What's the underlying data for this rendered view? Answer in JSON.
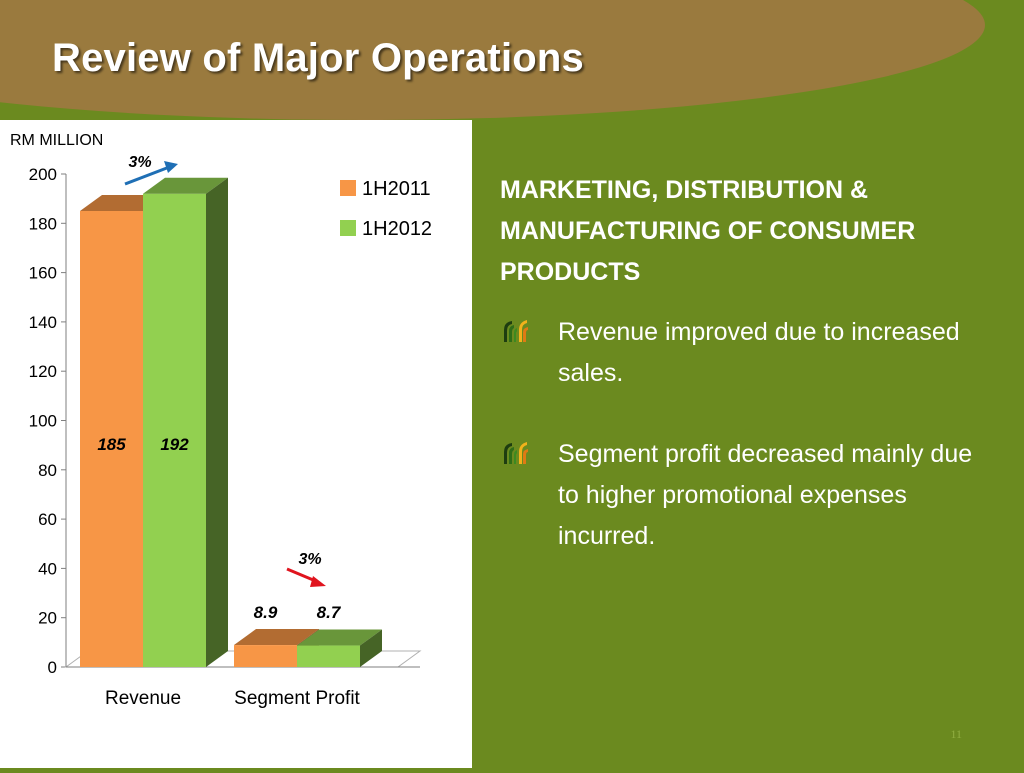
{
  "slide": {
    "title": "Review of Major Operations",
    "page_number": "11"
  },
  "content": {
    "heading": "MARKETING, DISTRIBUTION & MANUFACTURING OF CONSUMER PRODUCTS",
    "bullets": [
      {
        "icon": "leaf-logo-icon",
        "text": "Revenue improved due to increased sales."
      },
      {
        "icon": "leaf-logo-icon",
        "text": "Segment profit decreased mainly due to higher promotional expenses incurred."
      }
    ]
  },
  "chart_data": {
    "type": "bar",
    "unit_label": "RM MILLION",
    "categories": [
      "Revenue",
      "Segment Profit"
    ],
    "series": [
      {
        "name": "1H2011",
        "values": [
          185,
          8.9
        ],
        "color": "#f79646"
      },
      {
        "name": "1H2012",
        "values": [
          192,
          8.7
        ],
        "color": "#92d050"
      }
    ],
    "ylim": [
      0,
      200
    ],
    "yticks": [
      "0",
      "20",
      "40",
      "60",
      "80",
      "100",
      "120",
      "140",
      "160",
      "180",
      "200"
    ],
    "data_labels": [
      [
        "185",
        "8.9"
      ],
      [
        "192",
        "8.7"
      ]
    ],
    "legend_position": "top-right",
    "annotations": [
      {
        "category": "Revenue",
        "text": "3%",
        "direction": "up",
        "color": "#1f6fb5"
      },
      {
        "category": "Segment Profit",
        "text": "3%",
        "direction": "down",
        "color": "#e0141e"
      }
    ],
    "grid": false
  }
}
